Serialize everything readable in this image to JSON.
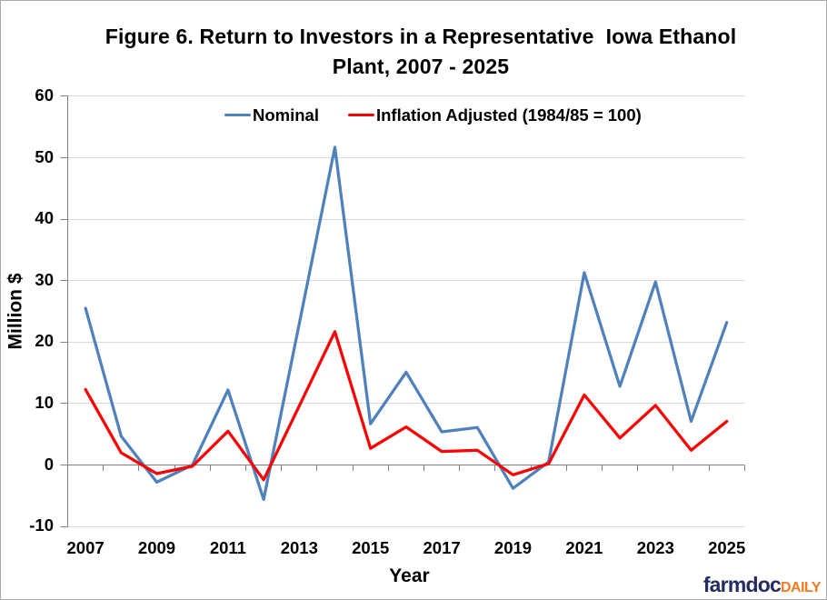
{
  "figure": {
    "title_line1": "Figure 6. Return to Investors in a Representative  Iowa Ethanol",
    "title_line2": "Plant, 2007 - 2025"
  },
  "axes": {
    "y_title": "Million $",
    "x_title": "Year",
    "y_tick_labels": [
      "-10",
      "0",
      "10",
      "20",
      "30",
      "40",
      "50",
      "60"
    ],
    "x_tick_labels": [
      "2007",
      "2009",
      "2011",
      "2013",
      "2015",
      "2017",
      "2019",
      "2021",
      "2023",
      "2025"
    ]
  },
  "legend": {
    "items": [
      {
        "label": "Nominal",
        "color": "#4F81BD"
      },
      {
        "label": "Inflation Adjusted (1984/85 = 100)",
        "color": "#FF0000"
      }
    ]
  },
  "logo": {
    "farmdoc": "farmdoc",
    "daily": "DAILY",
    "farmdoc_color": "#232C5F",
    "daily_color": "#F4781F"
  },
  "colors": {
    "axis_line": "#808080",
    "gridline": "#D9D9D9",
    "frame_border": "#ABABAB",
    "background": "#FFFFFF"
  },
  "chart_data": {
    "type": "line",
    "title": "Figure 6. Return to Investors in a Representative Iowa Ethanol Plant, 2007 - 2025",
    "xlabel": "Year",
    "ylabel": "Million $",
    "x": [
      2007,
      2008,
      2009,
      2010,
      2011,
      2012,
      2013,
      2014,
      2015,
      2016,
      2017,
      2018,
      2019,
      2020,
      2021,
      2022,
      2023,
      2024,
      2025
    ],
    "series": [
      {
        "name": "Nominal",
        "color": "#4F81BD",
        "values": [
          25.5,
          4.7,
          -2.8,
          0.0,
          12.2,
          -5.6,
          23.0,
          51.7,
          6.7,
          15.1,
          5.4,
          6.1,
          -3.8,
          0.5,
          31.3,
          12.8,
          29.8,
          7.1,
          23.2
        ]
      },
      {
        "name": "Inflation Adjusted (1984/85 = 100)",
        "color": "#FF0000",
        "values": [
          12.3,
          2.0,
          -1.4,
          -0.2,
          5.5,
          -2.4,
          9.6,
          21.7,
          2.7,
          6.2,
          2.2,
          2.4,
          -1.6,
          0.2,
          11.4,
          4.4,
          9.7,
          2.4,
          7.1
        ]
      }
    ],
    "ylim": [
      -10,
      60
    ],
    "ytick_step": 10,
    "xtick_label_step": 2,
    "grid": true,
    "legend_position": "top-center"
  }
}
